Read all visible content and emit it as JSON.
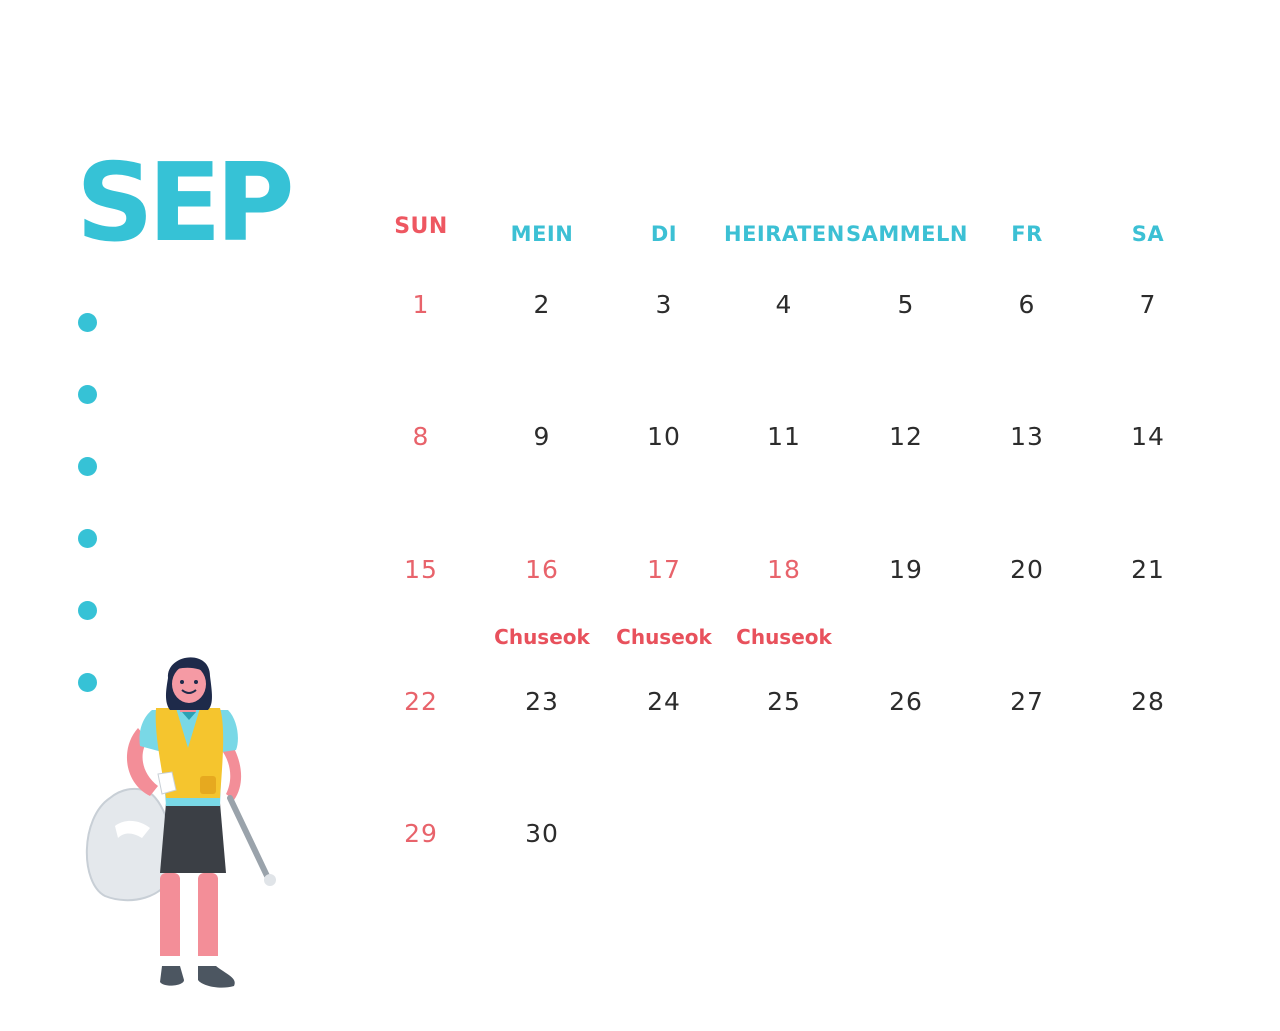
{
  "month": "SEP",
  "weekdays": [
    "SUN",
    "MEIN",
    "DI",
    "HEIRATEN",
    "SAMMELN",
    "FR",
    "SA"
  ],
  "weeks": [
    [
      "1",
      "2",
      "3",
      "4",
      "5",
      "6",
      "7"
    ],
    [
      "8",
      "9",
      "10",
      "11",
      "12",
      "13",
      "14"
    ],
    [
      "15",
      "16",
      "17",
      "18",
      "19",
      "20",
      "21"
    ],
    [
      "22",
      "23",
      "24",
      "25",
      "26",
      "27",
      "28"
    ],
    [
      "29",
      "30",
      "",
      "",
      "",
      "",
      ""
    ]
  ],
  "holidays": [
    {
      "label": "Chuseok",
      "day": "16"
    },
    {
      "label": "Chuseok",
      "day": "17"
    },
    {
      "label": "Chuseok",
      "day": "18"
    }
  ],
  "red_days": [
    "1",
    "8",
    "15",
    "16",
    "17",
    "18",
    "22",
    "29"
  ],
  "bullet_count": 6,
  "colors": {
    "accent": "#36c2d6",
    "holiday": "#e8515c",
    "text": "#2c2c2c"
  },
  "illustration": "woman-volunteer-with-trash-bag-icon"
}
